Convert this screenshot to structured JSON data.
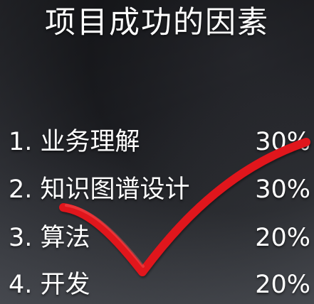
{
  "title": "项目成功的因素",
  "factors": [
    {
      "label": "1. 业务理解",
      "percent": "30%"
    },
    {
      "label": "2. 知识图谱设计",
      "percent": "30%"
    },
    {
      "label": "3. 算法",
      "percent": "20%"
    },
    {
      "label": "4. 开发",
      "percent": "20%"
    }
  ],
  "colors": {
    "text": "#ffffff",
    "checkmark": "#e0121b",
    "background": "#1d1e23"
  },
  "icons": {
    "checkmark": "red-checkmark-icon"
  }
}
